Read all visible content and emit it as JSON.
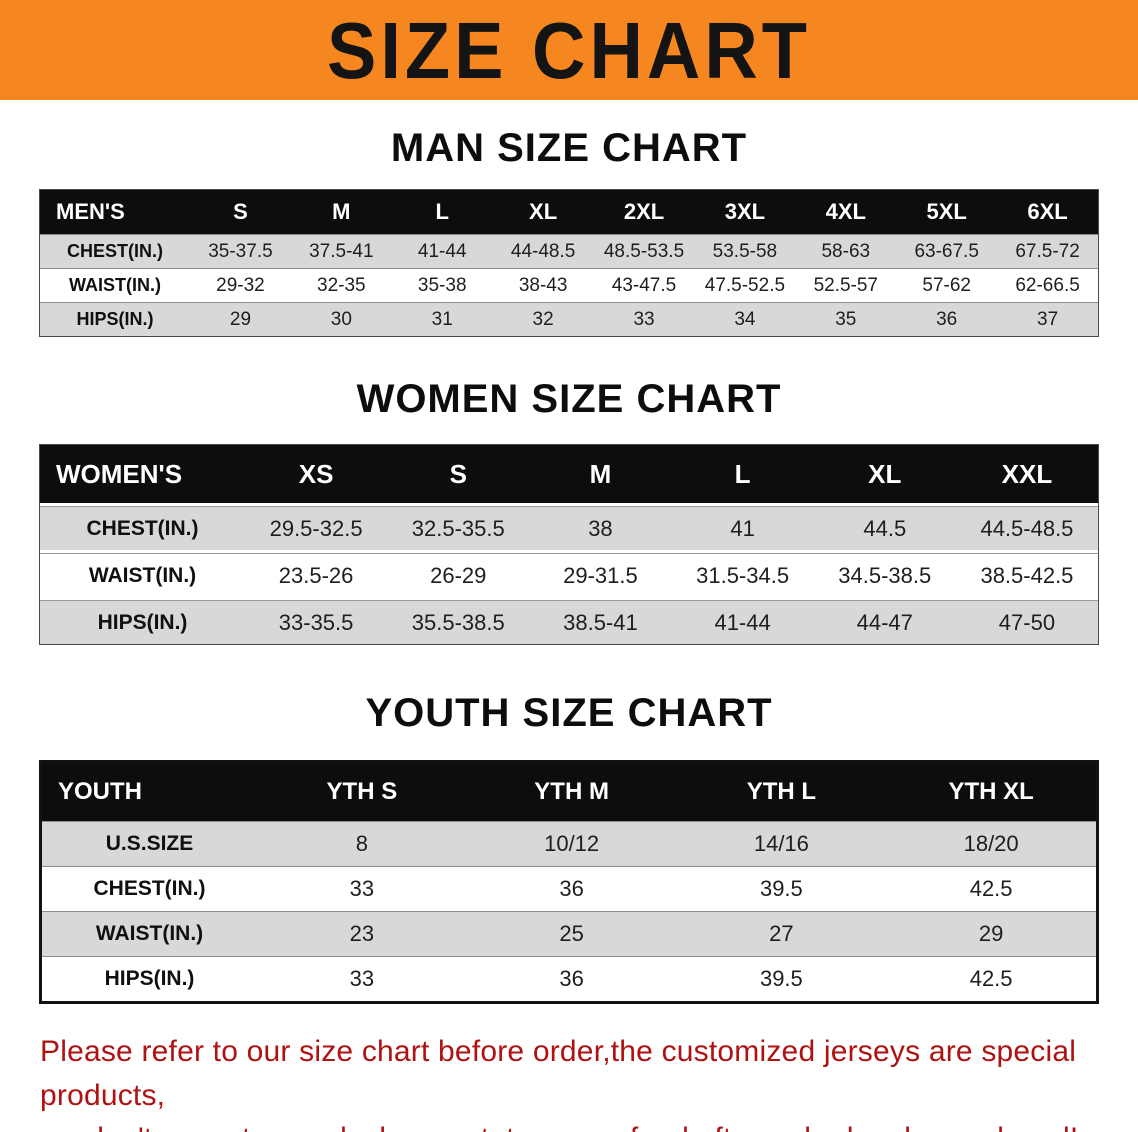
{
  "banner": {
    "title": "SIZE CHART"
  },
  "headings": {
    "men": "MAN SIZE CHART",
    "women": "WOMEN SIZE CHART",
    "youth": "YOUTH SIZE CHART"
  },
  "men": {
    "label": "MEN'S",
    "columns": [
      "S",
      "M",
      "L",
      "XL",
      "2XL",
      "3XL",
      "4XL",
      "5XL",
      "6XL"
    ],
    "rows": [
      {
        "label": "CHEST(IN.)",
        "values": [
          "35-37.5",
          "37.5-41",
          "41-44",
          "44-48.5",
          "48.5-53.5",
          "53.5-58",
          "58-63",
          "63-67.5",
          "67.5-72"
        ]
      },
      {
        "label": "WAIST(IN.)",
        "values": [
          "29-32",
          "32-35",
          "35-38",
          "38-43",
          "43-47.5",
          "47.5-52.5",
          "52.5-57",
          "57-62",
          "62-66.5"
        ]
      },
      {
        "label": "HIPS(IN.)",
        "values": [
          "29",
          "30",
          "31",
          "32",
          "33",
          "34",
          "35",
          "36",
          "37"
        ]
      }
    ]
  },
  "women": {
    "label": "WOMEN'S",
    "columns": [
      "XS",
      "S",
      "M",
      "L",
      "XL",
      "XXL"
    ],
    "rows": [
      {
        "label": "CHEST(IN.)",
        "values": [
          "29.5-32.5",
          "32.5-35.5",
          "38",
          "41",
          "44.5",
          "44.5-48.5"
        ]
      },
      {
        "label": "WAIST(IN.)",
        "values": [
          "23.5-26",
          "26-29",
          "29-31.5",
          "31.5-34.5",
          "34.5-38.5",
          "38.5-42.5"
        ]
      },
      {
        "label": "HIPS(IN.)",
        "values": [
          "33-35.5",
          "35.5-38.5",
          "38.5-41",
          "41-44",
          "44-47",
          "47-50"
        ]
      }
    ]
  },
  "youth": {
    "label": "YOUTH",
    "columns": [
      "YTH S",
      "YTH M",
      "YTH L",
      "YTH XL"
    ],
    "rows": [
      {
        "label": "U.S.SIZE",
        "values": [
          "8",
          "10/12",
          "14/16",
          "18/20"
        ]
      },
      {
        "label": "CHEST(IN.)",
        "values": [
          "33",
          "36",
          "39.5",
          "42.5"
        ]
      },
      {
        "label": "WAIST(IN.)",
        "values": [
          "23",
          "25",
          "27",
          "29"
        ]
      },
      {
        "label": "HIPS(IN.)",
        "values": [
          "33",
          "36",
          "39.5",
          "42.5"
        ]
      }
    ]
  },
  "disclaimer": {
    "line1": "Please refer to our size chart before order,the customized jerseys are special products,",
    "line2": "we don't accept cancel, change, teturn or refund after order has been placed!"
  },
  "colors": {
    "banner": "#f6861f",
    "header_bar": "#0d0d0d",
    "row_stripe": "#d8d8d8",
    "disclaimer_text": "#b01212"
  }
}
